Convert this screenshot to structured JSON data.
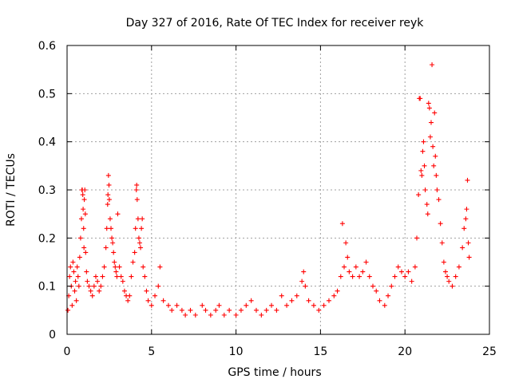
{
  "chart_data": {
    "type": "scatter",
    "title": "Day 327 of 2016, Rate Of TEC Index for receiver reyk",
    "xlabel": "GPS time / hours",
    "ylabel": "ROTI / TECUs",
    "xlim": [
      0,
      25
    ],
    "ylim": [
      0,
      0.6
    ],
    "xticks": [
      0,
      5,
      10,
      15,
      20,
      25
    ],
    "yticks": [
      0,
      0.1,
      0.2,
      0.3,
      0.4,
      0.5,
      0.6
    ],
    "xtick_labels": [
      "0",
      "5",
      "10",
      "15",
      "20",
      "25"
    ],
    "ytick_labels": [
      "0",
      "0.1",
      "0.2",
      "0.3",
      "0.4",
      "0.5",
      "0.6"
    ],
    "grid": true,
    "marker": "+",
    "color": "#ff0000",
    "series": [
      {
        "points": [
          [
            0.05,
            0.05
          ],
          [
            0.1,
            0.08
          ],
          [
            0.15,
            0.12
          ],
          [
            0.2,
            0.14
          ],
          [
            0.25,
            0.1
          ],
          [
            0.3,
            0.06
          ],
          [
            0.35,
            0.15
          ],
          [
            0.4,
            0.13
          ],
          [
            0.45,
            0.09
          ],
          [
            0.5,
            0.11
          ],
          [
            0.55,
            0.07
          ],
          [
            0.6,
            0.14
          ],
          [
            0.65,
            0.12
          ],
          [
            0.7,
            0.1
          ],
          [
            0.75,
            0.16
          ],
          [
            0.8,
            0.2
          ],
          [
            0.85,
            0.24
          ],
          [
            0.88,
            0.3
          ],
          [
            0.9,
            0.3
          ],
          [
            0.93,
            0.29
          ],
          [
            0.95,
            0.26
          ],
          [
            0.98,
            0.22
          ],
          [
            1.0,
            0.18
          ],
          [
            1.02,
            0.28
          ],
          [
            1.05,
            0.3
          ],
          [
            1.08,
            0.25
          ],
          [
            1.1,
            0.17
          ],
          [
            1.15,
            0.13
          ],
          [
            1.2,
            0.11
          ],
          [
            1.3,
            0.1
          ],
          [
            1.4,
            0.09
          ],
          [
            1.5,
            0.08
          ],
          [
            1.6,
            0.1
          ],
          [
            1.7,
            0.12
          ],
          [
            1.8,
            0.11
          ],
          [
            1.9,
            0.09
          ],
          [
            2.0,
            0.1
          ],
          [
            2.1,
            0.12
          ],
          [
            2.2,
            0.14
          ],
          [
            2.3,
            0.18
          ],
          [
            2.35,
            0.22
          ],
          [
            2.4,
            0.27
          ],
          [
            2.42,
            0.29
          ],
          [
            2.45,
            0.33
          ],
          [
            2.48,
            0.31
          ],
          [
            2.5,
            0.28
          ],
          [
            2.55,
            0.24
          ],
          [
            2.6,
            0.22
          ],
          [
            2.65,
            0.2
          ],
          [
            2.7,
            0.19
          ],
          [
            2.75,
            0.17
          ],
          [
            2.8,
            0.15
          ],
          [
            2.85,
            0.14
          ],
          [
            2.9,
            0.13
          ],
          [
            2.95,
            0.12
          ],
          [
            3.0,
            0.25
          ],
          [
            3.1,
            0.14
          ],
          [
            3.2,
            0.12
          ],
          [
            3.3,
            0.11
          ],
          [
            3.4,
            0.09
          ],
          [
            3.5,
            0.08
          ],
          [
            3.6,
            0.07
          ],
          [
            3.7,
            0.08
          ],
          [
            3.8,
            0.12
          ],
          [
            3.9,
            0.15
          ],
          [
            4.0,
            0.17
          ],
          [
            4.05,
            0.22
          ],
          [
            4.1,
            0.3
          ],
          [
            4.12,
            0.31
          ],
          [
            4.15,
            0.28
          ],
          [
            4.2,
            0.24
          ],
          [
            4.25,
            0.2
          ],
          [
            4.3,
            0.19
          ],
          [
            4.35,
            0.18
          ],
          [
            4.4,
            0.22
          ],
          [
            4.45,
            0.24
          ],
          [
            4.5,
            0.14
          ],
          [
            4.6,
            0.12
          ],
          [
            4.7,
            0.09
          ],
          [
            4.8,
            0.07
          ],
          [
            5.0,
            0.06
          ],
          [
            5.2,
            0.08
          ],
          [
            5.4,
            0.1
          ],
          [
            5.5,
            0.14
          ],
          [
            5.7,
            0.07
          ],
          [
            6.0,
            0.06
          ],
          [
            6.2,
            0.05
          ],
          [
            6.5,
            0.06
          ],
          [
            6.8,
            0.05
          ],
          [
            7.0,
            0.04
          ],
          [
            7.3,
            0.05
          ],
          [
            7.6,
            0.04
          ],
          [
            8.0,
            0.06
          ],
          [
            8.2,
            0.05
          ],
          [
            8.5,
            0.04
          ],
          [
            8.8,
            0.05
          ],
          [
            9.0,
            0.06
          ],
          [
            9.3,
            0.04
          ],
          [
            9.6,
            0.05
          ],
          [
            10.0,
            0.04
          ],
          [
            10.3,
            0.05
          ],
          [
            10.6,
            0.06
          ],
          [
            10.9,
            0.07
          ],
          [
            11.2,
            0.05
          ],
          [
            11.5,
            0.04
          ],
          [
            11.8,
            0.05
          ],
          [
            12.1,
            0.06
          ],
          [
            12.4,
            0.05
          ],
          [
            12.7,
            0.08
          ],
          [
            13.0,
            0.06
          ],
          [
            13.3,
            0.07
          ],
          [
            13.6,
            0.08
          ],
          [
            13.9,
            0.11
          ],
          [
            14.0,
            0.13
          ],
          [
            14.1,
            0.1
          ],
          [
            14.3,
            0.07
          ],
          [
            14.6,
            0.06
          ],
          [
            14.9,
            0.05
          ],
          [
            15.2,
            0.06
          ],
          [
            15.5,
            0.07
          ],
          [
            15.8,
            0.08
          ],
          [
            16.0,
            0.09
          ],
          [
            16.2,
            0.12
          ],
          [
            16.3,
            0.23
          ],
          [
            16.4,
            0.14
          ],
          [
            16.5,
            0.19
          ],
          [
            16.6,
            0.16
          ],
          [
            16.7,
            0.13
          ],
          [
            16.9,
            0.12
          ],
          [
            17.1,
            0.14
          ],
          [
            17.3,
            0.12
          ],
          [
            17.5,
            0.13
          ],
          [
            17.7,
            0.15
          ],
          [
            17.9,
            0.12
          ],
          [
            18.1,
            0.1
          ],
          [
            18.3,
            0.09
          ],
          [
            18.5,
            0.07
          ],
          [
            18.8,
            0.06
          ],
          [
            19.0,
            0.08
          ],
          [
            19.2,
            0.1
          ],
          [
            19.4,
            0.12
          ],
          [
            19.6,
            0.14
          ],
          [
            19.8,
            0.13
          ],
          [
            20.0,
            0.12
          ],
          [
            20.2,
            0.13
          ],
          [
            20.4,
            0.11
          ],
          [
            20.6,
            0.14
          ],
          [
            20.7,
            0.2
          ],
          [
            20.8,
            0.29
          ],
          [
            20.85,
            0.49
          ],
          [
            20.9,
            0.49
          ],
          [
            20.95,
            0.34
          ],
          [
            21.0,
            0.33
          ],
          [
            21.05,
            0.38
          ],
          [
            21.1,
            0.4
          ],
          [
            21.15,
            0.35
          ],
          [
            21.2,
            0.3
          ],
          [
            21.3,
            0.27
          ],
          [
            21.35,
            0.25
          ],
          [
            21.4,
            0.48
          ],
          [
            21.45,
            0.47
          ],
          [
            21.5,
            0.41
          ],
          [
            21.55,
            0.44
          ],
          [
            21.6,
            0.56
          ],
          [
            21.65,
            0.39
          ],
          [
            21.7,
            0.35
          ],
          [
            21.75,
            0.46
          ],
          [
            21.8,
            0.37
          ],
          [
            21.85,
            0.33
          ],
          [
            21.9,
            0.3
          ],
          [
            22.0,
            0.28
          ],
          [
            22.1,
            0.23
          ],
          [
            22.2,
            0.19
          ],
          [
            22.3,
            0.15
          ],
          [
            22.4,
            0.13
          ],
          [
            22.5,
            0.12
          ],
          [
            22.6,
            0.11
          ],
          [
            22.8,
            0.1
          ],
          [
            23.0,
            0.12
          ],
          [
            23.2,
            0.14
          ],
          [
            23.4,
            0.18
          ],
          [
            23.5,
            0.22
          ],
          [
            23.6,
            0.24
          ],
          [
            23.65,
            0.26
          ],
          [
            23.7,
            0.32
          ],
          [
            23.75,
            0.19
          ],
          [
            23.8,
            0.16
          ]
        ]
      }
    ]
  }
}
